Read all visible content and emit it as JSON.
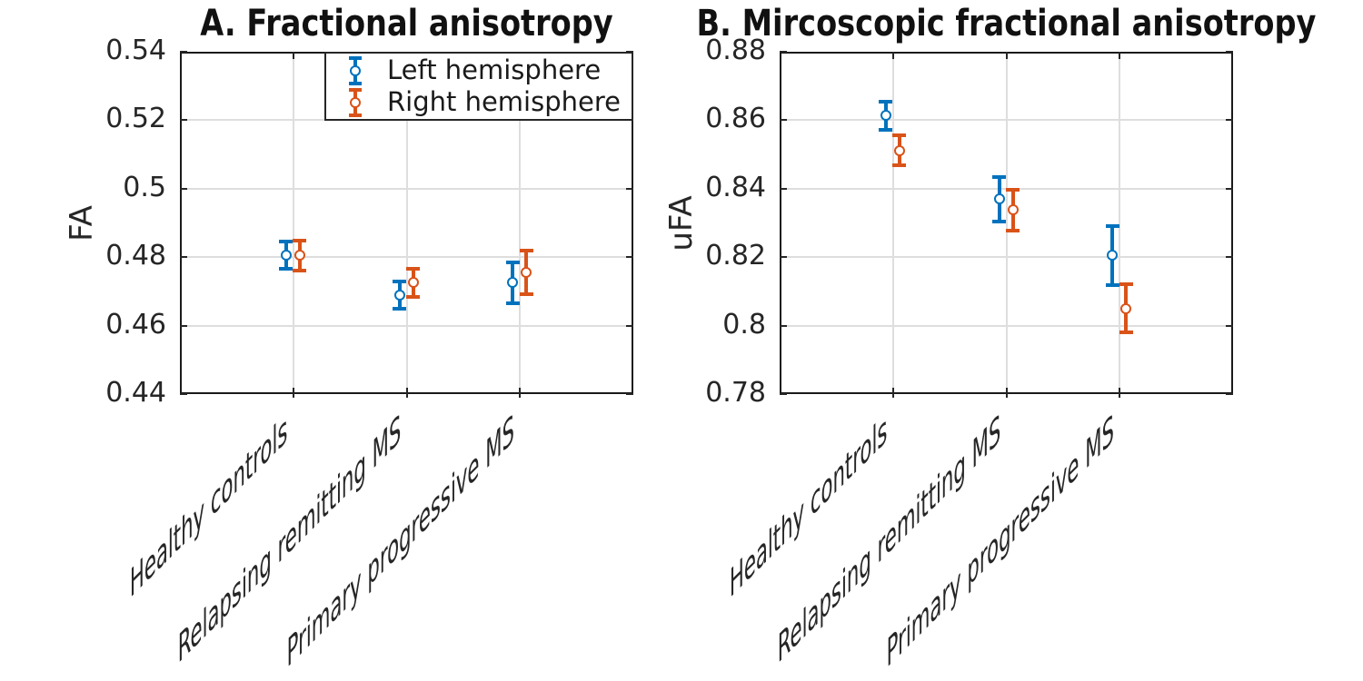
{
  "figure": {
    "background": "#ffffff",
    "axis_color": "#1a1a1a",
    "grid_color": "#dedede",
    "tick_text_color": "#262626",
    "legend": {
      "location": "top-right-of-left-panel",
      "items": [
        {
          "label": "Left hemisphere",
          "color": "#0072BD"
        },
        {
          "label": "Right hemisphere",
          "color": "#D95319"
        }
      ]
    }
  },
  "chart_data": [
    {
      "id": "A",
      "type": "scatter",
      "subtype": "errorbar",
      "title": "A. Fractional anisotropy",
      "ylabel": "FA",
      "xlabel": "",
      "ylim": [
        0.44,
        0.54
      ],
      "yticks": [
        0.44,
        0.46,
        0.48,
        0.5,
        0.52,
        0.54
      ],
      "ytick_labels": [
        "0.44",
        "0.46",
        "0.48",
        "0.5",
        "0.52",
        "0.54"
      ],
      "categories": [
        "Healthy controls",
        "Relapsing remitting MS",
        "Primary progressive MS"
      ],
      "xtick_angle": 45,
      "grid": true,
      "legend_visible": true,
      "series": [
        {
          "name": "Left hemisphere",
          "color": "#0072BD",
          "marker": "o",
          "means": [
            0.4805,
            0.469,
            0.4725
          ],
          "errors": [
            0.004,
            0.004,
            0.006
          ]
        },
        {
          "name": "Right hemisphere",
          "color": "#D95319",
          "marker": "o",
          "means": [
            0.4805,
            0.4725,
            0.4755
          ],
          "errors": [
            0.0043,
            0.0042,
            0.0063
          ]
        }
      ]
    },
    {
      "id": "B",
      "type": "scatter",
      "subtype": "errorbar",
      "title": "B. Mircoscopic fractional anisotropy",
      "ylabel": "uFA",
      "xlabel": "",
      "ylim": [
        0.78,
        0.88
      ],
      "yticks": [
        0.78,
        0.8,
        0.82,
        0.84,
        0.86,
        0.88
      ],
      "ytick_labels": [
        "0.78",
        "0.8",
        "0.82",
        "0.84",
        "0.86",
        "0.88"
      ],
      "categories": [
        "Healthy controls",
        "Relapsing remitting MS",
        "Primary progressive MS"
      ],
      "xtick_angle": 45,
      "grid": true,
      "legend_visible": false,
      "series": [
        {
          "name": "Left hemisphere",
          "color": "#0072BD",
          "marker": "o",
          "means": [
            0.8613,
            0.837,
            0.8205
          ],
          "errors": [
            0.0042,
            0.0065,
            0.0086
          ]
        },
        {
          "name": "Right hemisphere",
          "color": "#D95319",
          "marker": "o",
          "means": [
            0.8512,
            0.8338,
            0.805
          ],
          "errors": [
            0.0044,
            0.006,
            0.007
          ]
        }
      ]
    }
  ]
}
